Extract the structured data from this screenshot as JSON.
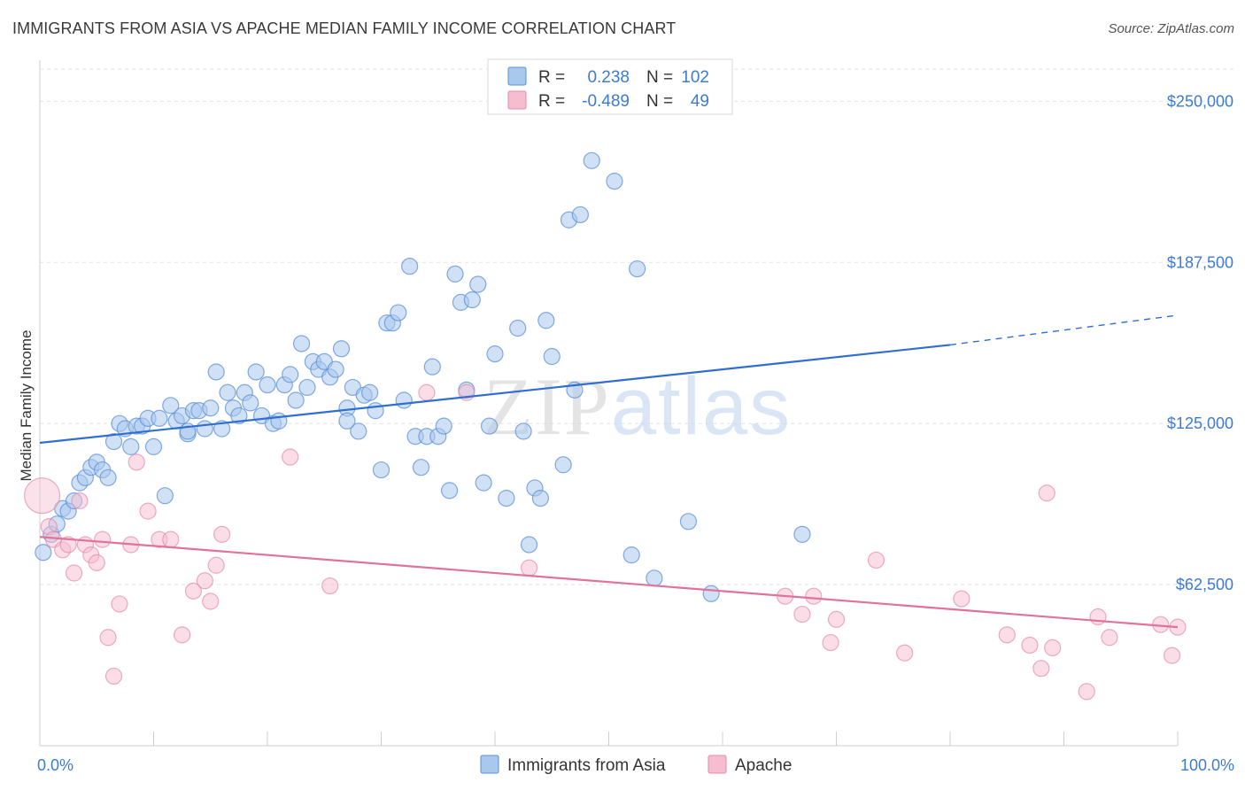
{
  "title": "IMMIGRANTS FROM ASIA VS APACHE MEDIAN FAMILY INCOME CORRELATION CHART",
  "source": "Source: ZipAtlas.com",
  "colors": {
    "blue_fill": "#a9c8ee",
    "blue_stroke": "#5b8fd6",
    "blue_line": "#2f6fcf",
    "pink_fill": "#f6bcd0",
    "pink_stroke": "#e48aaa",
    "pink_line": "#e0729b",
    "tick_text": "#3d7bd1",
    "grid": "#e3e3e3"
  },
  "chart_data": {
    "type": "scatter",
    "title": "IMMIGRANTS FROM ASIA VS APACHE MEDIAN FAMILY INCOME CORRELATION CHART",
    "xlabel": "",
    "ylabel": "Median Family Income",
    "xlim": [
      0,
      100
    ],
    "ylim": [
      0,
      262500
    ],
    "x_tick_labels": [
      "0.0%",
      "100.0%"
    ],
    "y_ticks": [
      62500,
      125000,
      187500,
      250000
    ],
    "y_tick_labels": [
      "$62,500",
      "$125,000",
      "$187,500",
      "$250,000"
    ],
    "grid": true,
    "legend_position": "top-center",
    "watermark": "ZIPatlas",
    "legend": [
      {
        "r_label": "R =",
        "r_value": "0.238",
        "n_label": "N =",
        "n_value": "102"
      },
      {
        "r_label": "R =",
        "r_value": "-0.489",
        "n_label": "N =",
        "n_value": "49"
      }
    ],
    "series": [
      {
        "name": "Immigrants from Asia",
        "color": "#a9c8ee",
        "trend": {
          "x": [
            0,
            80
          ],
          "y": [
            117500,
            155500
          ],
          "dashed_to": [
            100,
            167000
          ]
        },
        "points": [
          [
            0.3,
            75000
          ],
          [
            1,
            82000
          ],
          [
            1.5,
            86000
          ],
          [
            2,
            92000
          ],
          [
            2.5,
            91000
          ],
          [
            3,
            95000
          ],
          [
            3.5,
            102000
          ],
          [
            4,
            104000
          ],
          [
            4.5,
            108000
          ],
          [
            5,
            110000
          ],
          [
            5.5,
            107000
          ],
          [
            6,
            104000
          ],
          [
            6.5,
            118000
          ],
          [
            7,
            125000
          ],
          [
            7.5,
            123000
          ],
          [
            8,
            116000
          ],
          [
            8.5,
            124000
          ],
          [
            9,
            124000
          ],
          [
            9.5,
            127000
          ],
          [
            10,
            116000
          ],
          [
            10.5,
            127000
          ],
          [
            11,
            97000
          ],
          [
            11.5,
            132000
          ],
          [
            12,
            126000
          ],
          [
            12.5,
            128000
          ],
          [
            13,
            121000
          ],
          [
            13.5,
            130000
          ],
          [
            14,
            130000
          ],
          [
            14.5,
            123000
          ],
          [
            15,
            131000
          ],
          [
            15.5,
            145000
          ],
          [
            16,
            123000
          ],
          [
            16.5,
            137000
          ],
          [
            17,
            131000
          ],
          [
            17.5,
            128000
          ],
          [
            18,
            137000
          ],
          [
            18.5,
            133000
          ],
          [
            19,
            145000
          ],
          [
            19.5,
            128000
          ],
          [
            20,
            140000
          ],
          [
            20.5,
            125000
          ],
          [
            21,
            126000
          ],
          [
            21.5,
            140000
          ],
          [
            22,
            144000
          ],
          [
            22.5,
            134000
          ],
          [
            23,
            156000
          ],
          [
            23.5,
            139000
          ],
          [
            24,
            149000
          ],
          [
            24.5,
            146000
          ],
          [
            25,
            149000
          ],
          [
            25.5,
            143000
          ],
          [
            26,
            146000
          ],
          [
            26.5,
            154000
          ],
          [
            27,
            131000
          ],
          [
            27.5,
            139000
          ],
          [
            28,
            122000
          ],
          [
            28.5,
            136000
          ],
          [
            29,
            137000
          ],
          [
            29.5,
            130000
          ],
          [
            30,
            107000
          ],
          [
            30.5,
            164000
          ],
          [
            31,
            164000
          ],
          [
            31.5,
            168000
          ],
          [
            32,
            134000
          ],
          [
            32.5,
            186000
          ],
          [
            33,
            120000
          ],
          [
            33.5,
            108000
          ],
          [
            34,
            120000
          ],
          [
            34.5,
            147000
          ],
          [
            35,
            120000
          ],
          [
            35.5,
            124000
          ],
          [
            36,
            99000
          ],
          [
            36.5,
            183000
          ],
          [
            37,
            172000
          ],
          [
            37.5,
            138000
          ],
          [
            38,
            173000
          ],
          [
            38.5,
            179000
          ],
          [
            39,
            102000
          ],
          [
            39.5,
            124000
          ],
          [
            40,
            152000
          ],
          [
            41,
            96000
          ],
          [
            42,
            162000
          ],
          [
            42.5,
            122000
          ],
          [
            43,
            78000
          ],
          [
            43.5,
            100000
          ],
          [
            44,
            96000
          ],
          [
            44.5,
            165000
          ],
          [
            45,
            151000
          ],
          [
            46,
            109000
          ],
          [
            46.5,
            204000
          ],
          [
            47,
            138000
          ],
          [
            47.5,
            206000
          ],
          [
            48.5,
            227000
          ],
          [
            50.5,
            219000
          ],
          [
            52,
            74000
          ],
          [
            52.5,
            185000
          ],
          [
            54,
            65000
          ],
          [
            57,
            87000
          ],
          [
            59,
            59000
          ],
          [
            67,
            82000
          ],
          [
            13,
            122000
          ],
          [
            27,
            126000
          ]
        ]
      },
      {
        "name": "Apache",
        "color": "#f6bcd0",
        "trend": {
          "x": [
            0,
            100
          ],
          "y": [
            81000,
            46000
          ]
        },
        "points": [
          [
            0.2,
            97000
          ],
          [
            0.8,
            85000
          ],
          [
            1.2,
            80000
          ],
          [
            2,
            76000
          ],
          [
            2.5,
            78000
          ],
          [
            3,
            67000
          ],
          [
            3.5,
            95000
          ],
          [
            4,
            78000
          ],
          [
            4.5,
            74000
          ],
          [
            5,
            71000
          ],
          [
            5.5,
            80000
          ],
          [
            6,
            42000
          ],
          [
            6.5,
            27000
          ],
          [
            7,
            55000
          ],
          [
            8,
            78000
          ],
          [
            8.5,
            110000
          ],
          [
            9.5,
            91000
          ],
          [
            10.5,
            80000
          ],
          [
            11.5,
            80000
          ],
          [
            12.5,
            43000
          ],
          [
            13.5,
            60000
          ],
          [
            14.5,
            64000
          ],
          [
            15,
            56000
          ],
          [
            15.5,
            70000
          ],
          [
            16,
            82000
          ],
          [
            22,
            112000
          ],
          [
            25.5,
            62000
          ],
          [
            34,
            137000
          ],
          [
            37.5,
            137000
          ],
          [
            43,
            69000
          ],
          [
            65.5,
            58000
          ],
          [
            67,
            51000
          ],
          [
            68,
            58000
          ],
          [
            69.5,
            40000
          ],
          [
            70,
            49000
          ],
          [
            73.5,
            72000
          ],
          [
            76,
            36000
          ],
          [
            81,
            57000
          ],
          [
            85,
            43000
          ],
          [
            87,
            39000
          ],
          [
            88,
            30000
          ],
          [
            88.5,
            98000
          ],
          [
            89,
            38000
          ],
          [
            92,
            21000
          ],
          [
            93,
            50000
          ],
          [
            94,
            42000
          ],
          [
            98.5,
            47000
          ],
          [
            99.5,
            35000
          ],
          [
            100,
            46000
          ]
        ]
      }
    ]
  }
}
